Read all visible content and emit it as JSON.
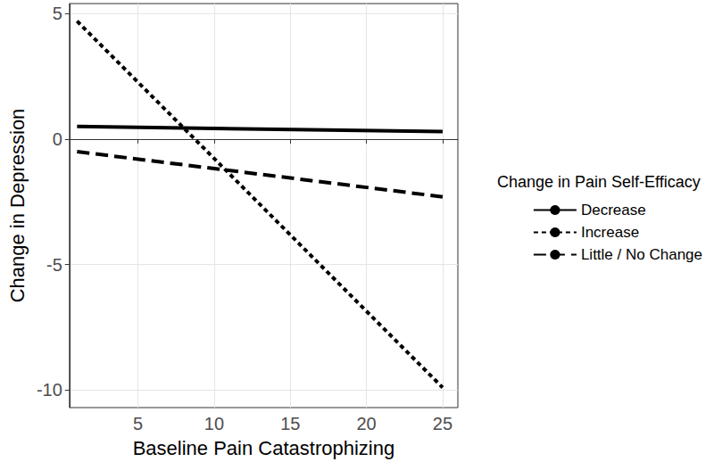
{
  "chart_data": {
    "type": "line",
    "x_label": "Baseline Pain Catastrophizing",
    "y_label": "Change in Depression",
    "legend_title": "Change in Pain Self-Efficacy",
    "x": [
      1,
      25
    ],
    "series": [
      {
        "name": "Decrease",
        "color": "#000000",
        "line_style": "solid",
        "values": [
          0.5,
          0.3
        ]
      },
      {
        "name": "Increase",
        "color": "#000000",
        "line_style": "dotted",
        "values": [
          4.7,
          -9.9
        ]
      },
      {
        "name": "Little / No Change",
        "color": "#000000",
        "line_style": "dashed",
        "values": [
          -0.5,
          -2.3
        ]
      }
    ],
    "xlim": [
      0.5,
      26
    ],
    "ylim": [
      -10.7,
      5.4
    ],
    "xticks": [
      5,
      10,
      15,
      20,
      25
    ],
    "yticks": [
      -10,
      -5,
      0,
      5
    ],
    "grid": true,
    "legend": "right"
  }
}
